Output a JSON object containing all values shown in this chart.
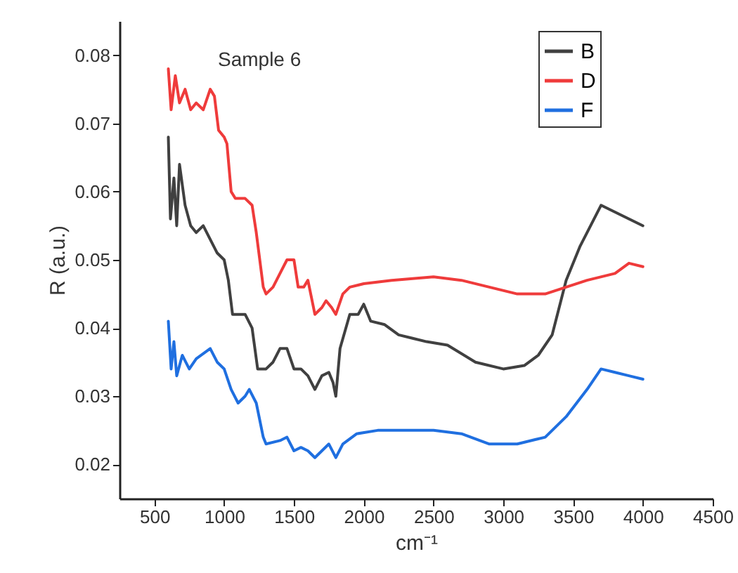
{
  "chart_data": {
    "type": "line",
    "xlabel": "cm⁻¹",
    "ylabel": "R (a.u.)",
    "annotations": [
      "Sample 6"
    ],
    "xlim": [
      250,
      4500
    ],
    "xticks": [
      500,
      1000,
      1500,
      2000,
      2500,
      3000,
      3500,
      4000,
      4500
    ],
    "ylim": [
      0.015,
      0.085
    ],
    "yticks": [
      0.02,
      0.03,
      0.04,
      0.05,
      0.06,
      0.07,
      0.08
    ],
    "grid": false,
    "legend": "top right",
    "line_style": "solid",
    "marker": "none",
    "series": [
      {
        "name": "B",
        "color": "#404040",
        "x": [
          600,
          615,
          640,
          660,
          680,
          720,
          760,
          800,
          850,
          900,
          950,
          1000,
          1030,
          1060,
          1100,
          1150,
          1200,
          1240,
          1300,
          1350,
          1400,
          1450,
          1500,
          1550,
          1600,
          1650,
          1700,
          1750,
          1780,
          1800,
          1830,
          1900,
          1960,
          2000,
          2050,
          2150,
          2250,
          2350,
          2450,
          2600,
          2800,
          3000,
          3150,
          3250,
          3350,
          3450,
          3550,
          3700,
          3800,
          3900,
          4000
        ],
        "values": [
          0.068,
          0.056,
          0.062,
          0.055,
          0.064,
          0.058,
          0.055,
          0.054,
          0.055,
          0.053,
          0.051,
          0.05,
          0.047,
          0.042,
          0.042,
          0.042,
          0.04,
          0.034,
          0.034,
          0.035,
          0.037,
          0.037,
          0.034,
          0.034,
          0.033,
          0.031,
          0.033,
          0.0335,
          0.032,
          0.03,
          0.037,
          0.042,
          0.042,
          0.0435,
          0.041,
          0.0405,
          0.039,
          0.0385,
          0.038,
          0.0375,
          0.035,
          0.034,
          0.0345,
          0.036,
          0.039,
          0.047,
          0.052,
          0.058,
          0.057,
          0.056,
          0.055
        ]
      },
      {
        "name": "D",
        "color": "#ef3b3b",
        "x": [
          600,
          620,
          650,
          680,
          720,
          760,
          800,
          850,
          900,
          930,
          960,
          1000,
          1020,
          1050,
          1080,
          1150,
          1200,
          1230,
          1280,
          1300,
          1350,
          1400,
          1450,
          1500,
          1530,
          1570,
          1600,
          1650,
          1700,
          1730,
          1770,
          1800,
          1850,
          1900,
          2000,
          2200,
          2500,
          2700,
          2900,
          3100,
          3300,
          3450,
          3600,
          3800,
          3900,
          4000
        ],
        "values": [
          0.078,
          0.072,
          0.077,
          0.073,
          0.075,
          0.072,
          0.073,
          0.072,
          0.075,
          0.074,
          0.069,
          0.068,
          0.067,
          0.06,
          0.059,
          0.059,
          0.058,
          0.054,
          0.046,
          0.045,
          0.046,
          0.048,
          0.05,
          0.05,
          0.046,
          0.046,
          0.047,
          0.042,
          0.043,
          0.044,
          0.043,
          0.042,
          0.045,
          0.046,
          0.0465,
          0.047,
          0.0475,
          0.047,
          0.046,
          0.045,
          0.045,
          0.046,
          0.047,
          0.048,
          0.0495,
          0.049
        ]
      },
      {
        "name": "F",
        "color": "#1f6fe0",
        "x": [
          600,
          620,
          640,
          660,
          700,
          750,
          800,
          900,
          950,
          1000,
          1050,
          1100,
          1150,
          1180,
          1230,
          1280,
          1300,
          1400,
          1450,
          1500,
          1550,
          1600,
          1650,
          1700,
          1750,
          1800,
          1850,
          1950,
          2100,
          2300,
          2500,
          2700,
          2900,
          3100,
          3300,
          3450,
          3600,
          3700,
          3800,
          3900,
          4000
        ],
        "values": [
          0.041,
          0.034,
          0.038,
          0.033,
          0.036,
          0.034,
          0.0355,
          0.037,
          0.035,
          0.034,
          0.031,
          0.029,
          0.03,
          0.031,
          0.029,
          0.024,
          0.023,
          0.0235,
          0.024,
          0.022,
          0.0225,
          0.022,
          0.021,
          0.022,
          0.023,
          0.021,
          0.023,
          0.0245,
          0.025,
          0.025,
          0.025,
          0.0245,
          0.023,
          0.023,
          0.024,
          0.027,
          0.031,
          0.034,
          0.0335,
          0.033,
          0.0325
        ]
      }
    ]
  }
}
